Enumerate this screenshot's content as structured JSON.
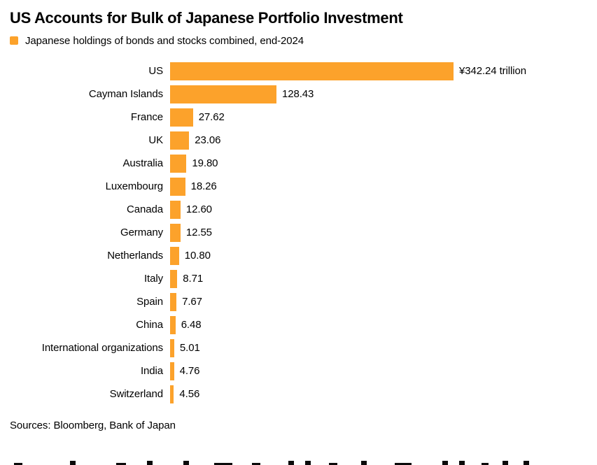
{
  "chart_data": {
    "type": "bar",
    "orientation": "horizontal",
    "title": "US Accounts for Bulk of Japanese Portfolio Investment",
    "legend": "Japanese holdings of bonds and stocks combined, end-2024",
    "unit": "yen trillion",
    "categories": [
      "US",
      "Cayman Islands",
      "France",
      "UK",
      "Australia",
      "Luxembourg",
      "Canada",
      "Germany",
      "Netherlands",
      "Italy",
      "Spain",
      "China",
      "International organizations",
      "India",
      "Switzerland"
    ],
    "values": [
      342.24,
      128.43,
      27.62,
      23.06,
      19.8,
      18.26,
      12.6,
      12.55,
      10.8,
      8.71,
      7.67,
      6.48,
      5.01,
      4.76,
      4.56
    ],
    "value_labels": [
      "¥342.24 trillion",
      "128.43",
      "27.62",
      "23.06",
      "19.80",
      "18.26",
      "12.60",
      "12.55",
      "10.80",
      "8.71",
      "7.67",
      "6.48",
      "5.01",
      "4.76",
      "4.56"
    ],
    "xlim": [
      0,
      342.24
    ],
    "bar_color": "#FCA22B",
    "grid": false,
    "legend_position": "top-left",
    "sources": "Sources: Bloomberg, Bank of Japan"
  }
}
